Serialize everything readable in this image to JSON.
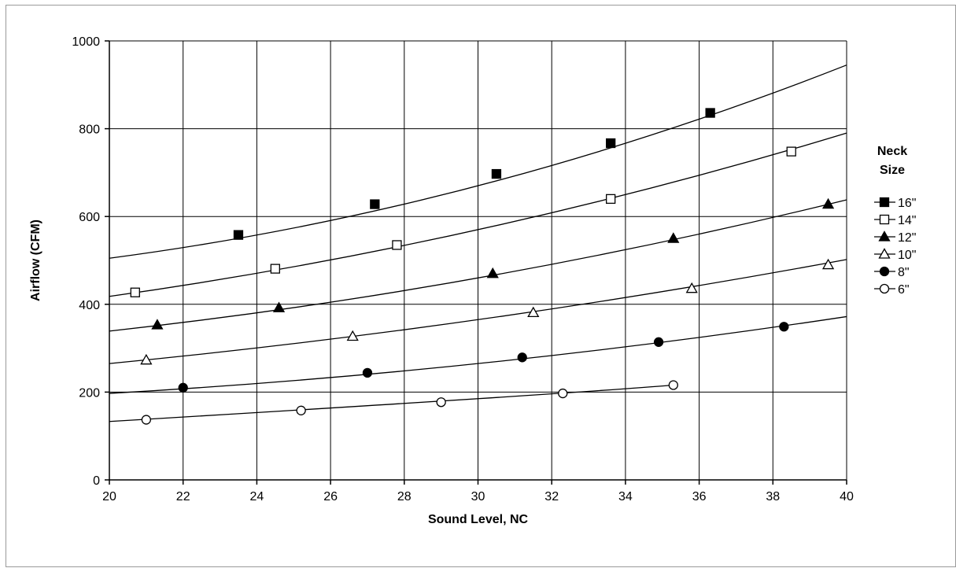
{
  "chart_data": {
    "type": "scatter",
    "title": "",
    "xlabel": "Sound Level, NC",
    "ylabel": "Airflow (CFM)",
    "xlim": [
      20,
      40
    ],
    "ylim": [
      0,
      1000
    ],
    "x_ticks": [
      20,
      22,
      24,
      26,
      28,
      30,
      32,
      34,
      36,
      38,
      40
    ],
    "y_ticks": [
      0,
      200,
      400,
      600,
      800,
      1000
    ],
    "grid": true,
    "legend": {
      "title_line1": "Neck",
      "title_line2": "Size",
      "position": "right"
    },
    "line_color": "#000000",
    "series": [
      {
        "name": "16\"",
        "marker": "square-filled",
        "points": [
          [
            23.5,
            558
          ],
          [
            27.2,
            628
          ],
          [
            30.5,
            697
          ],
          [
            33.6,
            767
          ],
          [
            36.3,
            836
          ]
        ],
        "trend": [
          [
            20,
            505
          ],
          [
            30,
            670
          ],
          [
            40,
            945
          ]
        ]
      },
      {
        "name": "14\"",
        "marker": "square-open",
        "points": [
          [
            20.7,
            427
          ],
          [
            24.5,
            481
          ],
          [
            27.8,
            535
          ],
          [
            33.6,
            640
          ],
          [
            38.5,
            748
          ]
        ],
        "trend": [
          [
            20,
            418
          ],
          [
            30,
            570
          ],
          [
            40,
            790
          ]
        ]
      },
      {
        "name": "12\"",
        "marker": "triangle-filled",
        "points": [
          [
            21.3,
            353
          ],
          [
            24.6,
            392
          ],
          [
            30.4,
            470
          ],
          [
            35.3,
            550
          ],
          [
            39.5,
            628
          ]
        ],
        "trend": [
          [
            20,
            339
          ],
          [
            30,
            460
          ],
          [
            40,
            638
          ]
        ]
      },
      {
        "name": "10\"",
        "marker": "triangle-open",
        "points": [
          [
            21.0,
            273
          ],
          [
            26.6,
            327
          ],
          [
            31.5,
            381
          ],
          [
            35.8,
            436
          ],
          [
            39.5,
            490
          ]
        ],
        "trend": [
          [
            20,
            265
          ],
          [
            30,
            365
          ],
          [
            40,
            502
          ]
        ]
      },
      {
        "name": "8\"",
        "marker": "circle-filled",
        "points": [
          [
            22.0,
            210
          ],
          [
            27.0,
            244
          ],
          [
            31.2,
            279
          ],
          [
            34.9,
            314
          ],
          [
            38.3,
            349
          ]
        ],
        "trend": [
          [
            20,
            197
          ],
          [
            30,
            265
          ],
          [
            40,
            372
          ]
        ]
      },
      {
        "name": "6\"",
        "marker": "circle-open",
        "points": [
          [
            21.0,
            137
          ],
          [
            25.2,
            158
          ],
          [
            29.0,
            177
          ],
          [
            32.3,
            197
          ],
          [
            35.3,
            216
          ]
        ],
        "trend": [
          [
            20,
            133
          ],
          [
            30,
            185
          ],
          [
            35.3,
            216
          ]
        ]
      }
    ]
  }
}
